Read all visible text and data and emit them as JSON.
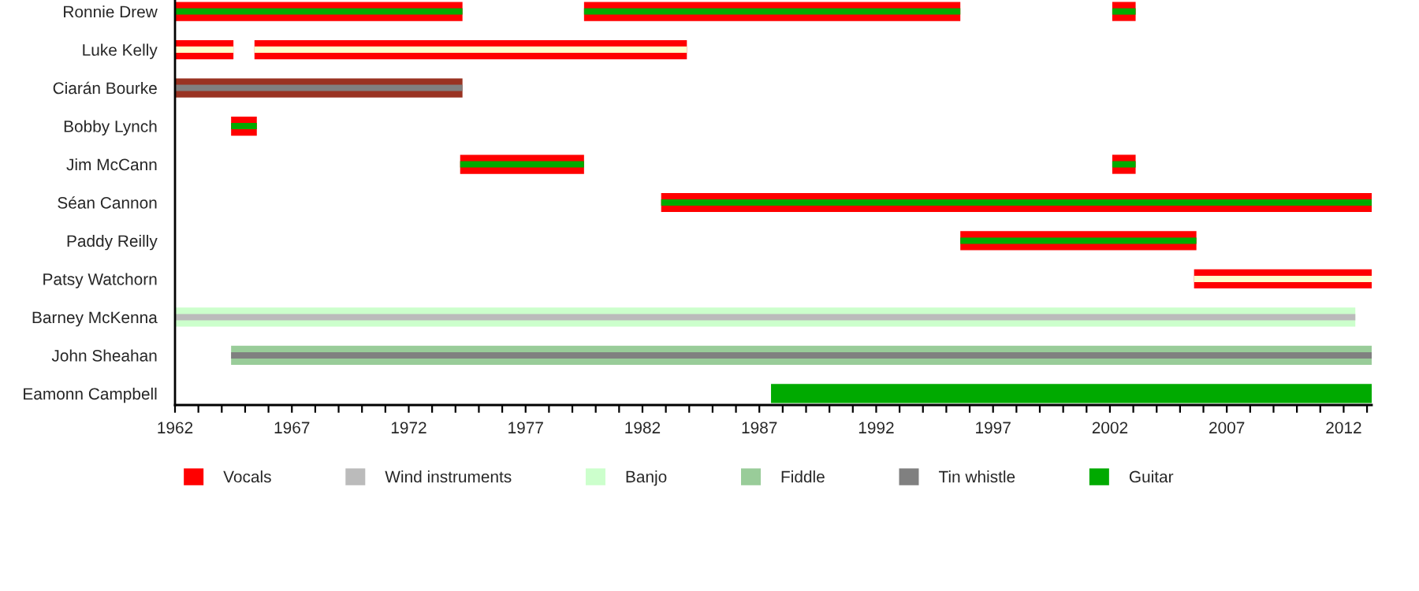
{
  "chart_data": {
    "type": "bar",
    "orientation": "horizontal",
    "legend": "bottom",
    "grid": false,
    "categories": [
      "Ronnie Drew",
      "Luke Kelly",
      "Ciarán Bourke",
      "Bobby Lynch",
      "Jim McCann",
      "Séan Cannon",
      "Paddy Reilly",
      "Patsy Watchorn",
      "Barney McKenna",
      "John Sheahan",
      "Eamonn Campbell"
    ],
    "xlim": [
      1962,
      2013.2
    ],
    "xticks": [
      1962,
      {
        "value": 1963,
        "label": null
      },
      {
        "value": 1964,
        "label": null
      },
      {
        "value": 1965,
        "label": null
      },
      {
        "value": 1966,
        "label": null
      },
      1967,
      {
        "value": 1968,
        "label": null
      },
      {
        "value": 1969,
        "label": null
      },
      {
        "value": 1970,
        "label": null
      },
      {
        "value": 1971,
        "label": null
      },
      1972,
      {
        "value": 1973,
        "label": null
      },
      {
        "value": 1974,
        "label": null
      },
      {
        "value": 1975,
        "label": null
      },
      {
        "value": 1976,
        "label": null
      },
      1977,
      {
        "value": 1978,
        "label": null
      },
      {
        "value": 1979,
        "label": null
      },
      {
        "value": 1980,
        "label": null
      },
      {
        "value": 1981,
        "label": null
      },
      1982,
      {
        "value": 1983,
        "label": null
      },
      {
        "value": 1984,
        "label": null
      },
      {
        "value": 1985,
        "label": null
      },
      {
        "value": 1986,
        "label": null
      },
      1987,
      {
        "value": 1988,
        "label": null
      },
      {
        "value": 1989,
        "label": null
      },
      {
        "value": 1990,
        "label": null
      },
      {
        "value": 1991,
        "label": null
      },
      1992,
      {
        "value": 1993,
        "label": null
      },
      {
        "value": 1994,
        "label": null
      },
      {
        "value": 1995,
        "label": null
      },
      {
        "value": 1996,
        "label": null
      },
      1997,
      {
        "value": 1998,
        "label": null
      },
      {
        "value": 1999,
        "label": null
      },
      {
        "value": 2000,
        "label": null
      },
      {
        "value": 2001,
        "label": null
      },
      2002,
      {
        "value": 2003,
        "label": null
      },
      {
        "value": 2004,
        "label": null
      },
      {
        "value": 2005,
        "label": null
      },
      {
        "value": 2006,
        "label": null
      },
      2007,
      {
        "value": 2008,
        "label": null
      },
      {
        "value": 2009,
        "label": null
      },
      {
        "value": 2010,
        "label": null
      },
      {
        "value": 2011,
        "label": null
      },
      2012,
      {
        "value": 2013,
        "label": null
      }
    ],
    "series": [
      {
        "name": "Vocals",
        "color": "#ff0000",
        "base": [
          1962,
          1962,
          null,
          1964.4,
          1974.2,
          1982.8,
          1995.6,
          2005.6,
          null,
          null,
          null
        ],
        "values": [
          12.3,
          2.5,
          null,
          1.1,
          5.3,
          30.4,
          10.1,
          7.6,
          null,
          null,
          null
        ]
      },
      {
        "color": "#ff0000",
        "base": [
          1979.5,
          1965.4,
          null,
          null,
          2002.1,
          null,
          null,
          null,
          null,
          null,
          null
        ],
        "values": [
          16.1,
          18.5,
          null,
          null,
          1.0,
          null,
          null,
          null,
          null,
          null,
          null
        ]
      },
      {
        "color": "#ff0000",
        "base": [
          2002.1,
          null,
          null,
          null,
          null,
          null,
          null,
          null,
          null,
          null,
          null
        ],
        "values": [
          1.0,
          null,
          null,
          null,
          null,
          null,
          null,
          null,
          null,
          null,
          null
        ]
      },
      {
        "color": "#993322",
        "base": [
          null,
          null,
          1962,
          null,
          null,
          null,
          null,
          null,
          null,
          null,
          null
        ],
        "values": [
          null,
          null,
          12.3,
          null,
          null,
          null,
          null,
          null,
          null,
          null,
          null
        ]
      },
      {
        "name": "Wind instruments",
        "color": "#bbbbbb",
        "base": [
          null,
          null,
          null,
          null,
          null,
          null,
          null,
          null,
          null,
          null,
          null
        ],
        "values": [
          null,
          null,
          null,
          null,
          null,
          null,
          null,
          null,
          null,
          null,
          null
        ]
      },
      {
        "name": "Banjo",
        "color": "#ccffcc",
        "base": [
          null,
          null,
          null,
          null,
          null,
          null,
          null,
          null,
          1962,
          null,
          null
        ],
        "values": [
          null,
          null,
          null,
          null,
          null,
          null,
          null,
          null,
          50.5,
          null,
          null
        ]
      },
      {
        "name": "Fiddle",
        "color": "#99cc99",
        "base": [
          null,
          null,
          null,
          null,
          null,
          null,
          null,
          null,
          null,
          1964.4,
          null
        ],
        "values": [
          null,
          null,
          null,
          null,
          null,
          null,
          null,
          null,
          null,
          48.8,
          null
        ]
      },
      {
        "name": "Tin whistle",
        "color": "#808080",
        "base": [
          null,
          null,
          1962,
          null,
          null,
          null,
          null,
          null,
          null,
          1964.4,
          null
        ],
        "values": [
          null,
          null,
          12.3,
          null,
          null,
          null,
          null,
          null,
          null,
          48.8,
          null
        ]
      },
      {
        "name": "Guitar",
        "color": "#00aa00",
        "base": [
          1962,
          null,
          null,
          1964.4,
          1974.2,
          1982.8,
          1995.6,
          null,
          null,
          null,
          1987.5
        ],
        "values": [
          12.3,
          null,
          null,
          1.1,
          5.3,
          30.4,
          10.1,
          null,
          null,
          null,
          25.7
        ]
      },
      {
        "color": "#00aa00",
        "base": [
          1979.5,
          null,
          null,
          null,
          2002.1,
          null,
          null,
          null,
          null,
          null,
          null
        ],
        "values": [
          16.1,
          null,
          null,
          null,
          1.0,
          null,
          null,
          null,
          null,
          null,
          null
        ]
      },
      {
        "color": "#00aa00",
        "base": [
          2002.1,
          null,
          null,
          null,
          null,
          null,
          null,
          null,
          null,
          null,
          null
        ],
        "values": [
          1.0,
          null,
          null,
          null,
          null,
          null,
          null,
          null,
          null,
          null,
          null
        ]
      },
      {
        "color": "#ffffcc",
        "base": [
          null,
          1962,
          null,
          null,
          null,
          null,
          null,
          2005.6,
          null,
          null,
          null
        ],
        "values": [
          null,
          2.5,
          null,
          null,
          null,
          null,
          null,
          7.6,
          null,
          null,
          null
        ]
      },
      {
        "color": "#ffffcc",
        "base": [
          null,
          1965.4,
          null,
          null,
          null,
          null,
          null,
          null,
          null,
          null,
          null
        ],
        "values": [
          null,
          18.5,
          null,
          null,
          null,
          null,
          null,
          null,
          null,
          null,
          null
        ]
      },
      {
        "color": "#bbbbbb",
        "base": [
          null,
          null,
          null,
          null,
          null,
          null,
          null,
          null,
          1962,
          null,
          null
        ],
        "values": [
          null,
          null,
          null,
          null,
          null,
          null,
          null,
          null,
          50.5,
          null,
          null
        ]
      }
    ]
  }
}
